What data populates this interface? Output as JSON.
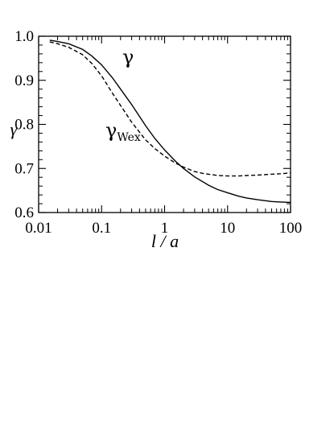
{
  "chart_data": {
    "type": "line",
    "xscale": "log",
    "xlim": [
      0.01,
      100
    ],
    "ylim": [
      0.6,
      1.0
    ],
    "xlabel": "l / a",
    "ylabel": "γ",
    "x_ticks": [
      "0.01",
      "0.1",
      "1",
      "10",
      "100"
    ],
    "y_ticks": [
      "0.6",
      "0.7",
      "0.8",
      "0.9",
      "1.0"
    ],
    "annotations": [
      {
        "text": "γ",
        "series": "γ"
      },
      {
        "text": "γ",
        "sub": "Wex",
        "series": "γ_Wex"
      }
    ],
    "series": [
      {
        "name": "γ",
        "style": "solid",
        "x": [
          0.015,
          0.02,
          0.03,
          0.05,
          0.07,
          0.1,
          0.15,
          0.2,
          0.3,
          0.5,
          0.7,
          1,
          1.5,
          2,
          3,
          5,
          7,
          10,
          15,
          20,
          30,
          50,
          70,
          100
        ],
        "y": [
          0.991,
          0.988,
          0.983,
          0.97,
          0.955,
          0.935,
          0.905,
          0.88,
          0.845,
          0.797,
          0.768,
          0.742,
          0.716,
          0.7,
          0.681,
          0.662,
          0.652,
          0.645,
          0.637,
          0.633,
          0.629,
          0.625,
          0.624,
          0.623
        ]
      },
      {
        "name": "γ_Wex",
        "style": "dashed",
        "x": [
          0.015,
          0.02,
          0.03,
          0.05,
          0.07,
          0.1,
          0.15,
          0.2,
          0.3,
          0.5,
          0.7,
          1,
          1.5,
          2,
          3,
          4,
          5,
          7,
          10,
          15,
          20,
          30,
          50,
          70,
          100
        ],
        "y": [
          0.987,
          0.983,
          0.975,
          0.958,
          0.938,
          0.91,
          0.87,
          0.843,
          0.805,
          0.765,
          0.745,
          0.728,
          0.712,
          0.703,
          0.693,
          0.689,
          0.687,
          0.684,
          0.683,
          0.683,
          0.684,
          0.685,
          0.687,
          0.688,
          0.69
        ]
      }
    ]
  }
}
